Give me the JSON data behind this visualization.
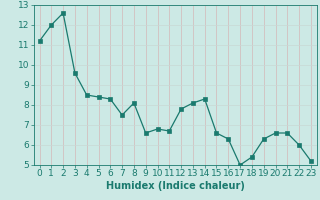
{
  "title": "",
  "xlabel": "Humidex (Indice chaleur)",
  "ylabel": "",
  "x": [
    0,
    1,
    2,
    3,
    4,
    5,
    6,
    7,
    8,
    9,
    10,
    11,
    12,
    13,
    14,
    15,
    16,
    17,
    18,
    19,
    20,
    21,
    22,
    23
  ],
  "y": [
    11.2,
    12.0,
    12.6,
    9.6,
    8.5,
    8.4,
    8.3,
    7.5,
    8.1,
    6.6,
    6.8,
    6.7,
    7.8,
    8.1,
    8.3,
    6.6,
    6.3,
    5.0,
    5.4,
    6.3,
    6.6,
    6.6,
    6.0,
    5.2
  ],
  "line_color": "#1a7a6e",
  "marker_color": "#1a7a6e",
  "bg_color": "#cce9e5",
  "grid_color": "#c0d8d5",
  "tick_color": "#1a7a6e",
  "label_color": "#1a7a6e",
  "ylim": [
    5,
    13
  ],
  "xlim": [
    -0.5,
    23.5
  ],
  "yticks": [
    5,
    6,
    7,
    8,
    9,
    10,
    11,
    12,
    13
  ],
  "xticks": [
    0,
    1,
    2,
    3,
    4,
    5,
    6,
    7,
    8,
    9,
    10,
    11,
    12,
    13,
    14,
    15,
    16,
    17,
    18,
    19,
    20,
    21,
    22,
    23
  ],
  "xlabel_fontsize": 7.0,
  "tick_fontsize": 6.5,
  "linewidth": 0.9,
  "markersize": 2.2
}
